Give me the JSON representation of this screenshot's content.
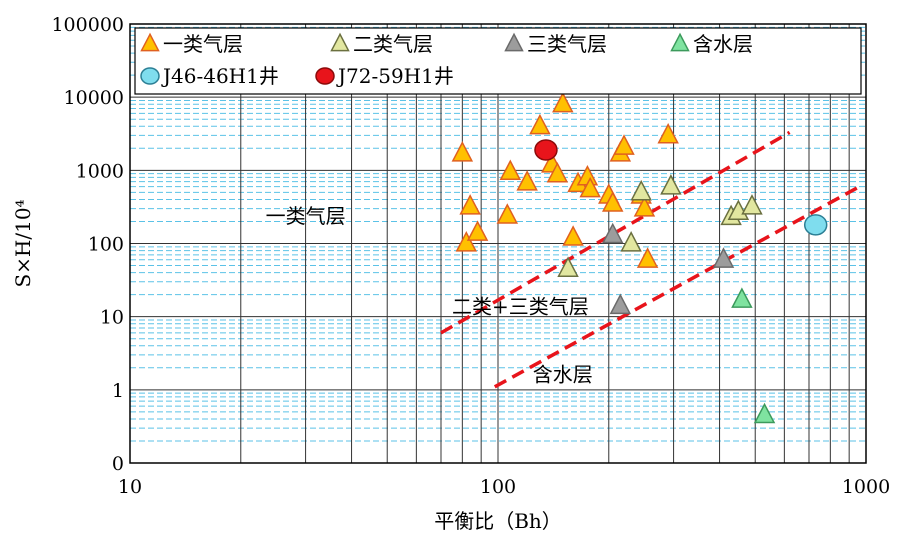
{
  "chart_data": {
    "type": "scatter",
    "xlabel": "平衡比（Bh）",
    "ylabel": "S×H/10⁴",
    "x_scale": "log",
    "y_scale": "log",
    "xlim": [
      10,
      1000
    ],
    "ylim": [
      0.1,
      100000
    ],
    "x_ticks": [
      10,
      100,
      1000
    ],
    "x_tick_labels": [
      "10",
      "100",
      "1000"
    ],
    "y_ticks": [
      0.1,
      1,
      10,
      100,
      1000,
      10000,
      100000
    ],
    "y_tick_labels": [
      "0",
      "1",
      "10",
      "100",
      "1000",
      "10000",
      "100000"
    ],
    "grid": true,
    "legend_position": "top",
    "series": [
      {
        "name": "一类气层",
        "marker": "triangle",
        "color": "#FFC000",
        "stroke": "#E06020",
        "points": [
          [
            80,
            1700
          ],
          [
            82,
            100
          ],
          [
            84,
            320
          ],
          [
            88,
            140
          ],
          [
            106,
            240
          ],
          [
            108,
            950
          ],
          [
            120,
            680
          ],
          [
            130,
            4000
          ],
          [
            140,
            1200
          ],
          [
            145,
            880
          ],
          [
            150,
            8000
          ],
          [
            160,
            120
          ],
          [
            165,
            650
          ],
          [
            175,
            800
          ],
          [
            178,
            550
          ],
          [
            200,
            450
          ],
          [
            205,
            350
          ],
          [
            215,
            1700
          ],
          [
            220,
            2100
          ],
          [
            245,
            450
          ],
          [
            250,
            300
          ],
          [
            255,
            60
          ],
          [
            290,
            3000
          ]
        ]
      },
      {
        "name": "二类气层",
        "marker": "triangle",
        "color": "#E2E7A0",
        "stroke": "#6B7040",
        "points": [
          [
            155,
            45
          ],
          [
            230,
            100
          ],
          [
            245,
            500
          ],
          [
            295,
            600
          ],
          [
            430,
            230
          ],
          [
            450,
            270
          ],
          [
            490,
            320
          ]
        ]
      },
      {
        "name": "三类气层",
        "marker": "triangle",
        "color": "#9C9C9C",
        "stroke": "#6A6A6A",
        "points": [
          [
            205,
            130
          ],
          [
            215,
            14
          ],
          [
            410,
            60
          ]
        ]
      },
      {
        "name": "含水层",
        "marker": "triangle",
        "color": "#7FE3A0",
        "stroke": "#3C9A5C",
        "points": [
          [
            460,
            17
          ],
          [
            530,
            0.45
          ]
        ]
      },
      {
        "name": "J46-46H1井",
        "marker": "circle",
        "color": "#7FDDEE",
        "stroke": "#2C7F95",
        "points": [
          [
            730,
            180
          ]
        ]
      },
      {
        "name": "J72-59H1井",
        "marker": "circle",
        "color": "#E8141B",
        "stroke": "#8C0A0A",
        "points": [
          [
            135,
            1900
          ]
        ]
      }
    ],
    "boundary_lines": [
      {
        "color": "#E8141B",
        "style": "dashed",
        "from": [
          70,
          6
        ],
        "to": [
          620,
          3300
        ]
      },
      {
        "color": "#E8141B",
        "style": "dashed",
        "from": [
          98,
          1.1
        ],
        "to": [
          960,
          600
        ]
      }
    ],
    "annotations": [
      {
        "text": "一类气层",
        "x": 30,
        "y": 190
      },
      {
        "text": "二类+三类气层",
        "x": 115,
        "y": 11
      },
      {
        "text": "含水层",
        "x": 150,
        "y": 1.3
      }
    ]
  }
}
